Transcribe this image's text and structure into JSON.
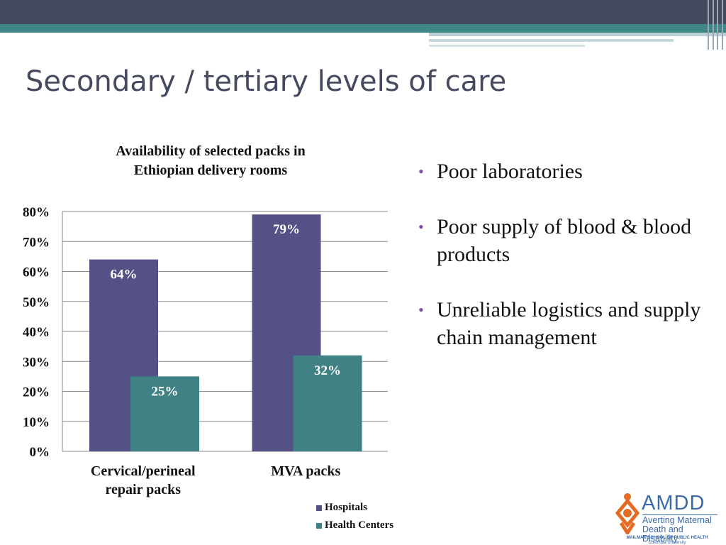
{
  "slide": {
    "title": "Secondary / tertiary levels of care",
    "bullets": [
      "Poor laboratories",
      "Poor supply of blood & blood products",
      "Unreliable logistics and supply chain management"
    ]
  },
  "logo": {
    "name": "AMDD",
    "line1": "Averting Maternal",
    "line2": "Death and Disability",
    "school": "MAILMAN SCHOOL OF PUBLIC HEALTH",
    "university": "Columbia University"
  },
  "colors": {
    "hospitals": "#535186",
    "health_centers": "#3f8184",
    "bullet": "#7b4fa0",
    "title": "#464a5e"
  },
  "chart_data": {
    "type": "bar",
    "title_lines": [
      "Availability of selected packs in",
      "Ethiopian delivery rooms"
    ],
    "categories": [
      "Cervical/perineal repair packs",
      "MVA packs"
    ],
    "category_lines": [
      [
        "Cervical/perineal",
        "repair packs"
      ],
      [
        "MVA packs"
      ]
    ],
    "series": [
      {
        "name": "Hospitals",
        "values": [
          64,
          79
        ],
        "labels": [
          "64%",
          "79%"
        ]
      },
      {
        "name": "Health Centers",
        "values": [
          25,
          32
        ],
        "labels": [
          "25%",
          "32%"
        ]
      }
    ],
    "y_ticks": [
      "0%",
      "10%",
      "20%",
      "30%",
      "40%",
      "50%",
      "60%",
      "70%",
      "80%"
    ],
    "ylim": [
      0,
      80
    ],
    "grid": true,
    "legend_position": "bottom-right"
  }
}
